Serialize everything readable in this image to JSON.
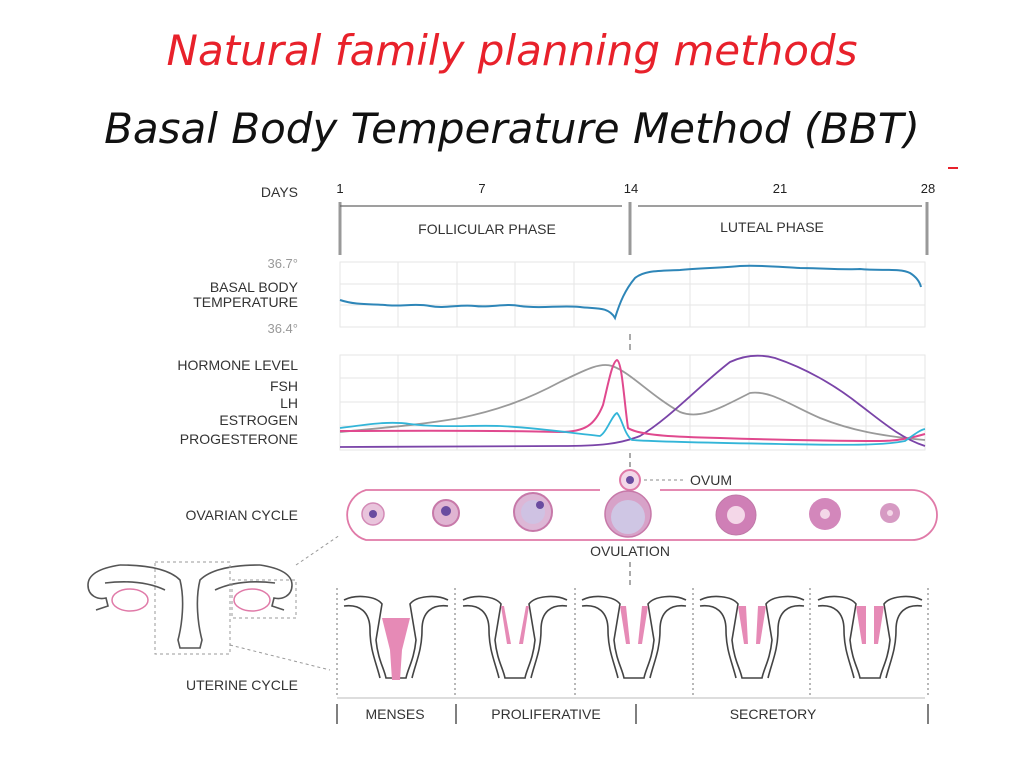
{
  "title": "Natural family planning methods",
  "subtitle": "Basal Body Temperature Method (BBT)",
  "days_label": "DAYS",
  "days": [
    "1",
    "7",
    "14",
    "21",
    "28"
  ],
  "phases": {
    "follicular": "FOLLICULAR PHASE",
    "luteal": "LUTEAL PHASE"
  },
  "bbt": {
    "label_line1": "BASAL BODY",
    "label_line2": "TEMPERATURE",
    "high": "36.7°",
    "low": "36.4°"
  },
  "hormones": {
    "title": "HORMONE LEVEL",
    "fsh": "FSH",
    "lh": "LH",
    "estrogen": "ESTROGEN",
    "progesterone": "PROGESTERONE"
  },
  "ovarian": {
    "label": "OVARIAN CYCLE",
    "ovum": "OVUM",
    "ovulation": "OVULATION"
  },
  "uterine": {
    "label": "UTERINE CYCLE",
    "menses": "MENSES",
    "proliferative": "PROLIFERATIVE",
    "secretory": "SECRETORY"
  },
  "colors": {
    "bbt": "#2e86b8",
    "fsh": "#33b5d8",
    "lh": "#e0498e",
    "estrogen": "#9a9a9a",
    "progesterone": "#7a44a8",
    "title_red": "#e8212b",
    "pink_light": "#f3c9dd",
    "pink": "#e07aa8"
  }
}
